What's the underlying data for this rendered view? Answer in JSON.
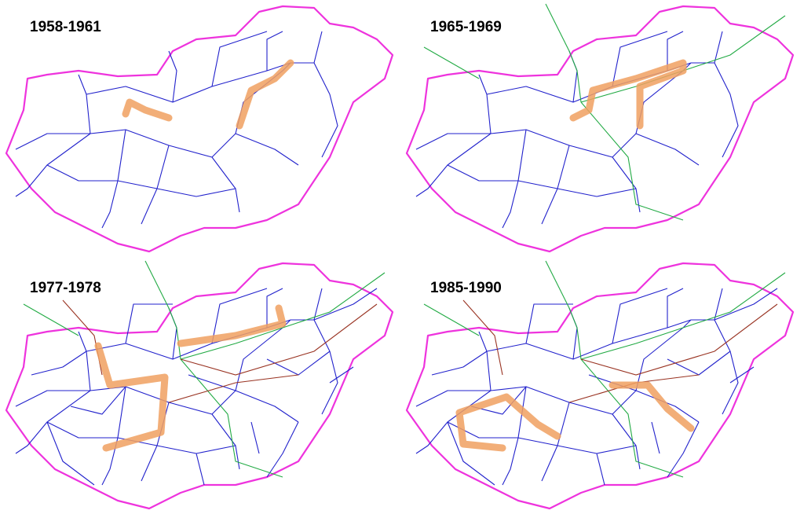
{
  "panels": [
    {
      "title": "1958-1961"
    },
    {
      "title": "1965-1969"
    },
    {
      "title": "1977-1978"
    },
    {
      "title": "1985-1990"
    }
  ]
}
